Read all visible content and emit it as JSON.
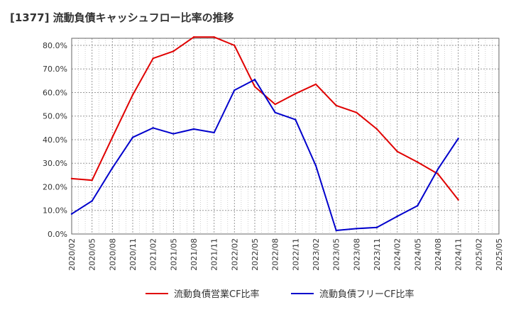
{
  "chart_data": {
    "type": "line",
    "title": "[1377]  流動負債キャッシュフロー比率の推移",
    "xlabel": "",
    "ylabel": "",
    "ylim": [
      0,
      83
    ],
    "grid": true,
    "legend_position": "bottom",
    "y_ticks": [
      0,
      10,
      20,
      30,
      40,
      50,
      60,
      70,
      80
    ],
    "y_tick_labels": [
      "0.0%",
      "10.0%",
      "20.0%",
      "30.0%",
      "40.0%",
      "50.0%",
      "60.0%",
      "70.0%",
      "80.0%"
    ],
    "categories": [
      "2020/02",
      "2020/05",
      "2020/08",
      "2020/11",
      "2021/02",
      "2021/05",
      "2021/08",
      "2021/11",
      "2022/02",
      "2022/05",
      "2022/08",
      "2022/11",
      "2023/02",
      "2023/05",
      "2023/08",
      "2023/11",
      "2024/02",
      "2024/05",
      "2024/08",
      "2024/11",
      "2025/02",
      "2025/05"
    ],
    "series": [
      {
        "name": "流動負債営業CF比率",
        "color": "#e00000",
        "values": [
          23.5,
          22.8,
          41.0,
          59.0,
          74.5,
          77.5,
          83.5,
          83.5,
          80.0,
          62.5,
          55.0,
          59.5,
          63.5,
          54.5,
          51.5,
          44.5,
          35.0,
          30.5,
          25.5,
          14.5,
          null,
          null
        ]
      },
      {
        "name": "流動負債フリーCF比率",
        "color": "#0000cc",
        "values": [
          8.5,
          14.0,
          28.0,
          41.0,
          45.0,
          42.5,
          44.5,
          43.0,
          61.0,
          65.5,
          51.5,
          48.5,
          29.0,
          1.5,
          2.3,
          2.8,
          7.5,
          12.0,
          27.5,
          40.5,
          null,
          null
        ]
      }
    ]
  }
}
